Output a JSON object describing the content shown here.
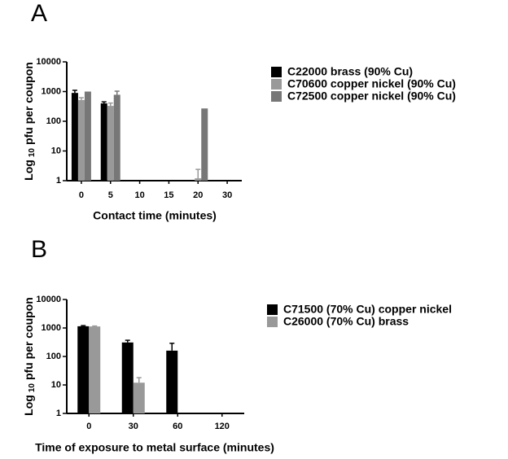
{
  "chart_data": [
    {
      "type": "bar",
      "panel_label": "A",
      "xlabel": "Contact time (minutes)",
      "ylabel": {
        "prefix": "Log",
        "subscript": "10",
        "rest": "pfu per coupon"
      },
      "log_scale": true,
      "ylim": [
        1,
        10000
      ],
      "yticks": [
        1,
        10,
        100,
        1000,
        10000
      ],
      "categories": [
        "0",
        "5",
        "10",
        "15",
        "20",
        "30"
      ],
      "legend": "right",
      "series": [
        {
          "name": "C22000 brass (90% Cu)",
          "color": "#000000",
          "values": [
            900,
            400,
            null,
            null,
            null,
            null
          ],
          "errors": [
            200,
            50,
            null,
            null,
            null,
            null
          ]
        },
        {
          "name": "C70600 copper nickel (90% Cu)",
          "color": "#999999",
          "values": [
            520,
            330,
            null,
            null,
            1.2,
            null
          ],
          "errors": [
            100,
            80,
            null,
            null,
            1.2,
            null
          ]
        },
        {
          "name": "C72500 copper nickel (90% Cu)",
          "color": "#777777",
          "values": [
            1000,
            780,
            null,
            null,
            270,
            null
          ],
          "errors": [
            null,
            250,
            null,
            null,
            null,
            null
          ]
        }
      ]
    },
    {
      "type": "bar",
      "panel_label": "B",
      "xlabel": "Time of exposure to metal surface (minutes)",
      "ylabel": {
        "prefix": "Log",
        "subscript": "10",
        "rest": "pfu per coupon"
      },
      "log_scale": true,
      "ylim": [
        1,
        10000
      ],
      "yticks": [
        1,
        10,
        100,
        1000,
        10000
      ],
      "categories": [
        "0",
        "30",
        "60",
        "120"
      ],
      "legend": "right",
      "series": [
        {
          "name": "C71500 (70% Cu) copper nickel",
          "color": "#000000",
          "values": [
            1150,
            310,
            160,
            null
          ],
          "errors": [
            60,
            60,
            130,
            null
          ]
        },
        {
          "name": "C26000 (70% Cu) brass",
          "color": "#999999",
          "values": [
            1130,
            12,
            null,
            null
          ],
          "errors": [
            40,
            6,
            null,
            null
          ]
        }
      ]
    }
  ]
}
